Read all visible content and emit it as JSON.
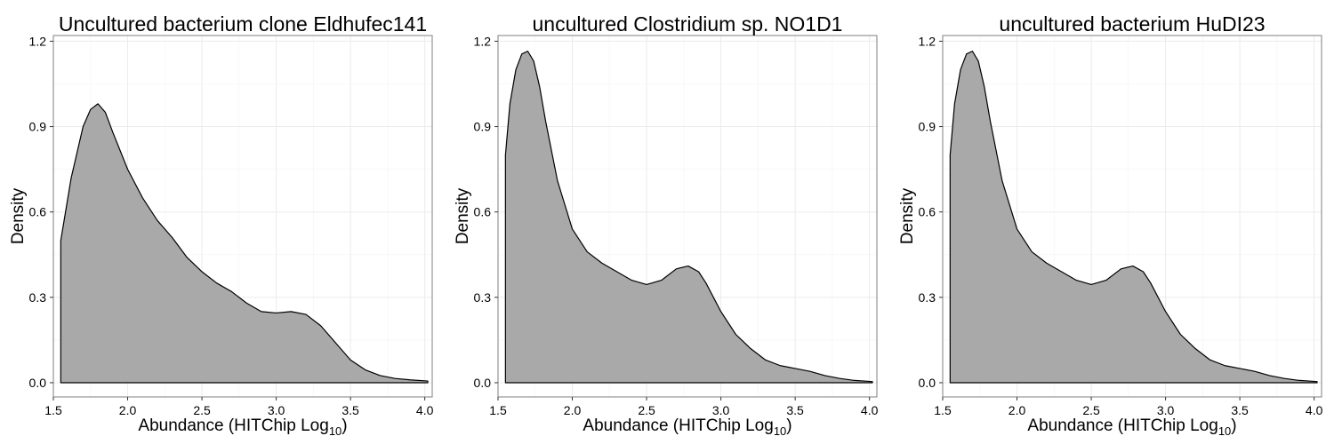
{
  "chart_data": [
    {
      "type": "area",
      "title": "Uncultured bacterium clone Eldhufec141",
      "xlabel": "Abundance (HITChip Log",
      "xlabel_sub": "10",
      "xlabel_end": ")",
      "ylabel": "Density",
      "xlim": [
        1.5,
        4.05
      ],
      "ylim": [
        -0.05,
        1.22
      ],
      "x_ticks": [
        1.5,
        2.0,
        2.5,
        3.0,
        3.5,
        4.0
      ],
      "x_tick_labels": [
        "1.5",
        "2.0",
        "2.5",
        "3.0",
        "3.5",
        "4.0"
      ],
      "y_ticks": [
        0.0,
        0.3,
        0.6,
        0.9,
        1.2
      ],
      "y_tick_labels": [
        "0.0",
        "0.3",
        "0.6",
        "0.9",
        "1.2"
      ],
      "grid": true,
      "fill_color": "#a9a9a9",
      "line_color": "#000000",
      "series": [
        {
          "x": [
            1.55,
            1.62,
            1.7,
            1.75,
            1.8,
            1.85,
            1.9,
            2.0,
            2.1,
            2.2,
            2.3,
            2.4,
            2.5,
            2.6,
            2.7,
            2.8,
            2.9,
            3.0,
            3.1,
            3.2,
            3.3,
            3.4,
            3.5,
            3.6,
            3.7,
            3.8,
            3.9,
            4.02
          ],
          "y": [
            0.5,
            0.72,
            0.9,
            0.96,
            0.98,
            0.95,
            0.88,
            0.75,
            0.65,
            0.57,
            0.51,
            0.44,
            0.39,
            0.35,
            0.32,
            0.28,
            0.25,
            0.245,
            0.25,
            0.24,
            0.2,
            0.14,
            0.08,
            0.045,
            0.025,
            0.015,
            0.01,
            0.006
          ]
        }
      ]
    },
    {
      "type": "area",
      "title": "uncultured Clostridium sp. NO1D1",
      "xlabel": "Abundance (HITChip Log",
      "xlabel_sub": "10",
      "xlabel_end": ")",
      "ylabel": "Density",
      "xlim": [
        1.5,
        4.05
      ],
      "ylim": [
        -0.05,
        1.22
      ],
      "x_ticks": [
        1.5,
        2.0,
        2.5,
        3.0,
        3.5,
        4.0
      ],
      "x_tick_labels": [
        "1.5",
        "2.0",
        "2.5",
        "3.0",
        "3.5",
        "4.0"
      ],
      "y_ticks": [
        0.0,
        0.3,
        0.6,
        0.9,
        1.2
      ],
      "y_tick_labels": [
        "0.0",
        "0.3",
        "0.6",
        "0.9",
        "1.2"
      ],
      "grid": true,
      "fill_color": "#a9a9a9",
      "line_color": "#000000",
      "series": [
        {
          "x": [
            1.55,
            1.58,
            1.62,
            1.66,
            1.7,
            1.74,
            1.78,
            1.82,
            1.9,
            2.0,
            2.1,
            2.2,
            2.3,
            2.4,
            2.5,
            2.6,
            2.7,
            2.78,
            2.85,
            2.9,
            3.0,
            3.1,
            3.2,
            3.3,
            3.4,
            3.5,
            3.6,
            3.7,
            3.8,
            3.9,
            4.02
          ],
          "y": [
            0.8,
            0.98,
            1.1,
            1.155,
            1.165,
            1.13,
            1.04,
            0.92,
            0.71,
            0.54,
            0.46,
            0.42,
            0.39,
            0.36,
            0.345,
            0.36,
            0.4,
            0.41,
            0.39,
            0.35,
            0.25,
            0.17,
            0.12,
            0.08,
            0.06,
            0.05,
            0.04,
            0.025,
            0.015,
            0.008,
            0.004
          ]
        }
      ]
    },
    {
      "type": "area",
      "title": "uncultured bacterium HuDI23",
      "xlabel": "Abundance (HITChip Log",
      "xlabel_sub": "10",
      "xlabel_end": ")",
      "ylabel": "Density",
      "xlim": [
        1.5,
        4.05
      ],
      "ylim": [
        -0.05,
        1.22
      ],
      "x_ticks": [
        1.5,
        2.0,
        2.5,
        3.0,
        3.5,
        4.0
      ],
      "x_tick_labels": [
        "1.5",
        "2.0",
        "2.5",
        "3.0",
        "3.5",
        "4.0"
      ],
      "y_ticks": [
        0.0,
        0.3,
        0.6,
        0.9,
        1.2
      ],
      "y_tick_labels": [
        "0.0",
        "0.3",
        "0.6",
        "0.9",
        "1.2"
      ],
      "grid": true,
      "fill_color": "#a9a9a9",
      "line_color": "#000000",
      "series": [
        {
          "x": [
            1.55,
            1.58,
            1.62,
            1.66,
            1.7,
            1.74,
            1.78,
            1.82,
            1.9,
            2.0,
            2.1,
            2.2,
            2.3,
            2.4,
            2.5,
            2.6,
            2.7,
            2.78,
            2.85,
            2.9,
            3.0,
            3.1,
            3.2,
            3.3,
            3.4,
            3.5,
            3.6,
            3.7,
            3.8,
            3.9,
            4.02
          ],
          "y": [
            0.8,
            0.98,
            1.1,
            1.155,
            1.165,
            1.13,
            1.04,
            0.92,
            0.71,
            0.54,
            0.46,
            0.42,
            0.39,
            0.36,
            0.345,
            0.36,
            0.4,
            0.41,
            0.39,
            0.35,
            0.25,
            0.17,
            0.12,
            0.08,
            0.06,
            0.05,
            0.04,
            0.025,
            0.015,
            0.008,
            0.004
          ]
        }
      ]
    }
  ]
}
